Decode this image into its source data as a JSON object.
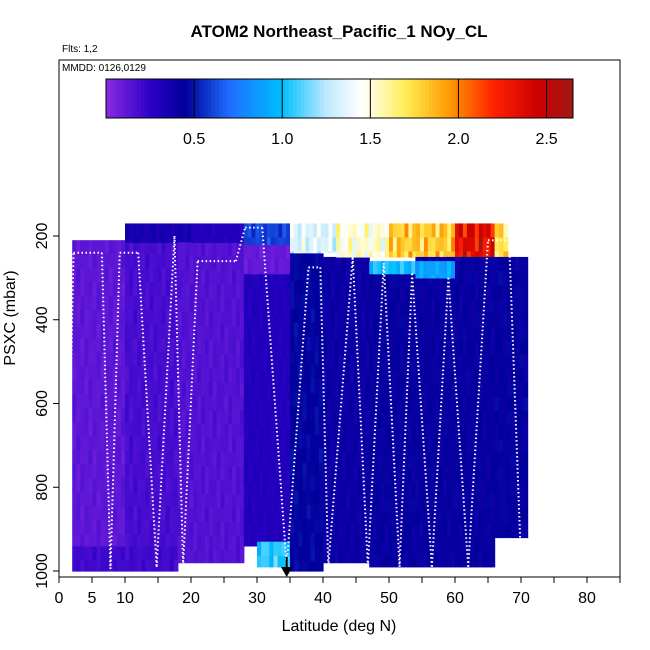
{
  "chart_data": {
    "type": "heatmap",
    "title": "ATOM2 Northeast_Pacific_1 NOy_CL",
    "flights_label": "Flts: 1,2",
    "mmdd_label": "MMDD: 0126,0129",
    "xlabel": "Latitude (deg N)",
    "ylabel": "PSXC (mbar)",
    "xlim": [
      0,
      85
    ],
    "ylim": [
      1000,
      100
    ],
    "x_ticks_labeled": [
      0,
      5,
      10,
      20,
      30,
      40,
      50,
      60,
      70,
      80
    ],
    "x_ticks_minor": [
      15,
      25,
      35,
      45,
      55,
      65,
      75,
      85
    ],
    "y_ticks": [
      200,
      400,
      600,
      800,
      1000
    ],
    "colorbar": {
      "range": [
        0,
        2.65
      ],
      "ticks": [
        0.5,
        1.0,
        1.5,
        2.0,
        2.5
      ],
      "tick_labels": [
        "0.5",
        "1.0",
        "1.5",
        "2.0",
        "2.5"
      ],
      "stops": [
        {
          "v": 0.0,
          "color": "#8a2be2"
        },
        {
          "v": 0.25,
          "color": "#2e00c8"
        },
        {
          "v": 0.45,
          "color": "#000099"
        },
        {
          "v": 0.7,
          "color": "#1f6dff"
        },
        {
          "v": 1.0,
          "color": "#00bfff"
        },
        {
          "v": 1.25,
          "color": "#bfe9ff"
        },
        {
          "v": 1.45,
          "color": "#ffffff"
        },
        {
          "v": 1.7,
          "color": "#ffee55"
        },
        {
          "v": 1.95,
          "color": "#ff9900"
        },
        {
          "v": 2.2,
          "color": "#ff2200"
        },
        {
          "v": 2.45,
          "color": "#cc0000"
        },
        {
          "v": 2.65,
          "color": "#a01818"
        }
      ]
    },
    "regions": [
      {
        "lat": [
          2,
          18
        ],
        "p": [
          940,
          1000
        ],
        "value": 0.2
      },
      {
        "lat": [
          2,
          10
        ],
        "p": [
          210,
          940
        ],
        "value": 0.12
      },
      {
        "lat": [
          10,
          18
        ],
        "p": [
          210,
          940
        ],
        "value": 0.18
      },
      {
        "lat": [
          10,
          20
        ],
        "p": [
          170,
          215
        ],
        "value": 0.35
      },
      {
        "lat": [
          18,
          28
        ],
        "p": [
          215,
          980
        ],
        "value": 0.15
      },
      {
        "lat": [
          20,
          28
        ],
        "p": [
          170,
          215
        ],
        "value": 0.3
      },
      {
        "lat": [
          28,
          35
        ],
        "p": [
          290,
          940
        ],
        "value": 0.3
      },
      {
        "lat": [
          28,
          35
        ],
        "p": [
          220,
          290
        ],
        "value": 0.1
      },
      {
        "lat": [
          28,
          35
        ],
        "p": [
          170,
          220
        ],
        "value": 0.6
      },
      {
        "lat": [
          30,
          35
        ],
        "p": [
          930,
          990
        ],
        "value": 1.05
      },
      {
        "lat": [
          35,
          40
        ],
        "p": [
          240,
          1000
        ],
        "value": 0.45
      },
      {
        "lat": [
          35,
          42
        ],
        "p": [
          170,
          240
        ],
        "value": 1.35
      },
      {
        "lat": [
          40,
          47
        ],
        "p": [
          250,
          980
        ],
        "value": 0.4
      },
      {
        "lat": [
          42,
          50
        ],
        "p": [
          170,
          250
        ],
        "value": 1.5
      },
      {
        "lat": [
          47,
          54
        ],
        "p": [
          290,
          990
        ],
        "value": 0.42
      },
      {
        "lat": [
          47,
          54
        ],
        "p": [
          260,
          290
        ],
        "value": 1.0
      },
      {
        "lat": [
          50,
          60
        ],
        "p": [
          170,
          250
        ],
        "value": 1.8
      },
      {
        "lat": [
          54,
          60
        ],
        "p": [
          250,
          990
        ],
        "value": 0.42
      },
      {
        "lat": [
          54,
          60
        ],
        "p": [
          260,
          300
        ],
        "value": 0.9
      },
      {
        "lat": [
          60,
          66
        ],
        "p": [
          170,
          250
        ],
        "value": 2.35
      },
      {
        "lat": [
          60,
          66
        ],
        "p": [
          250,
          990
        ],
        "value": 0.42
      },
      {
        "lat": [
          66,
          68
        ],
        "p": [
          170,
          250
        ],
        "value": 1.75
      },
      {
        "lat": [
          66,
          71
        ],
        "p": [
          250,
          920
        ],
        "value": 0.43
      }
    ],
    "profiles": [
      {
        "lat": [
          1.2,
          2.2
        ],
        "p": [
          990,
          240
        ]
      },
      {
        "lat": [
          2.2,
          6.5
        ],
        "p": [
          240,
          240
        ]
      },
      {
        "lat": [
          6.5,
          7.8
        ],
        "p": [
          240,
          995
        ]
      },
      {
        "lat": [
          7.8,
          9.2
        ],
        "p": [
          995,
          240
        ]
      },
      {
        "lat": [
          9.2,
          12.0
        ],
        "p": [
          240,
          240
        ]
      },
      {
        "lat": [
          12.0,
          14.8
        ],
        "p": [
          240,
          990
        ]
      },
      {
        "lat": [
          14.8,
          17.5
        ],
        "p": [
          990,
          200
        ]
      },
      {
        "lat": [
          17.5,
          18.8
        ],
        "p": [
          200,
          990
        ]
      },
      {
        "lat": [
          18.8,
          21.0
        ],
        "p": [
          990,
          260
        ]
      },
      {
        "lat": [
          21.0,
          26.8
        ],
        "p": [
          260,
          260
        ]
      },
      {
        "lat": [
          26.8,
          28.2
        ],
        "p": [
          260,
          180
        ]
      },
      {
        "lat": [
          28.2,
          30.8
        ],
        "p": [
          180,
          180
        ]
      },
      {
        "lat": [
          30.8,
          34.5
        ],
        "p": [
          180,
          990
        ]
      },
      {
        "lat": [
          34.5,
          37.8
        ],
        "p": [
          990,
          275
        ]
      },
      {
        "lat": [
          37.8,
          39.6
        ],
        "p": [
          275,
          275
        ]
      },
      {
        "lat": [
          39.6,
          40.8
        ],
        "p": [
          275,
          990
        ]
      },
      {
        "lat": [
          40.8,
          44.5
        ],
        "p": [
          990,
          250
        ]
      },
      {
        "lat": [
          44.5,
          46.8
        ],
        "p": [
          250,
          990
        ]
      },
      {
        "lat": [
          46.8,
          49.2
        ],
        "p": [
          990,
          265
        ]
      },
      {
        "lat": [
          49.2,
          51.6
        ],
        "p": [
          265,
          990
        ]
      },
      {
        "lat": [
          51.6,
          53.5
        ],
        "p": [
          990,
          290
        ]
      },
      {
        "lat": [
          53.5,
          56.5
        ],
        "p": [
          290,
          990
        ]
      },
      {
        "lat": [
          56.5,
          59.0
        ],
        "p": [
          990,
          300
        ]
      },
      {
        "lat": [
          59.0,
          62.0
        ],
        "p": [
          300,
          990
        ]
      },
      {
        "lat": [
          62.0,
          65.0
        ],
        "p": [
          990,
          210
        ]
      },
      {
        "lat": [
          65.0,
          68.2
        ],
        "p": [
          210,
          210
        ]
      },
      {
        "lat": [
          68.2,
          70.0
        ],
        "p": [
          210,
          980
        ]
      }
    ],
    "arrow_marker_lat": 34.5
  }
}
